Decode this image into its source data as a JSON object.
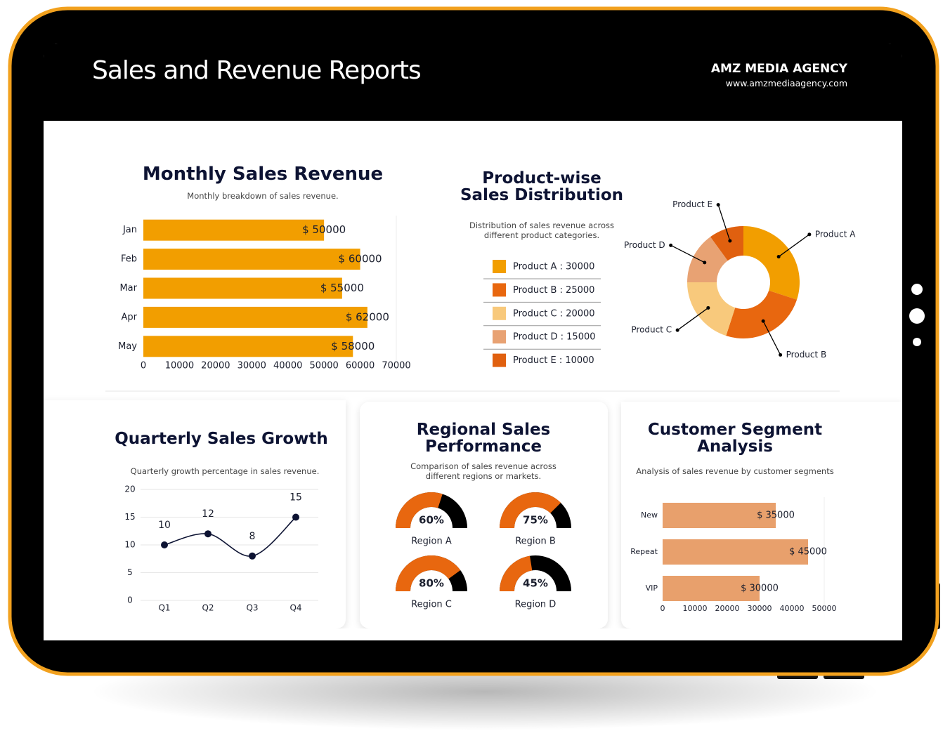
{
  "header": {
    "title": "Sales and Revenue Reports",
    "brand": "AMZ MEDIA AGENCY",
    "url": "www.amzmediaagency.com"
  },
  "chart_data": [
    {
      "type": "hbar",
      "title": "Monthly Sales Revenue",
      "subtitle": "Monthly breakdown of sales revenue.",
      "categories": [
        "Jan",
        "Feb",
        "Mar",
        "Apr",
        "May"
      ],
      "values": [
        50000,
        60000,
        55000,
        62000,
        58000
      ],
      "value_labels": [
        "$ 50000",
        "$ 60000",
        "$ 55000",
        "$ 62000",
        "$ 58000"
      ],
      "color": "#f29e00",
      "xlim": [
        0,
        70000
      ],
      "xticks": [
        0,
        10000,
        20000,
        30000,
        40000,
        50000,
        60000,
        70000
      ]
    },
    {
      "type": "donut",
      "title": "Product-wise Sales Distribution",
      "subtitle": "Distribution of sales revenue across different product categories.",
      "categories": [
        "Product A",
        "Product B",
        "Product C",
        "Product D",
        "Product E"
      ],
      "values": [
        30000,
        25000,
        20000,
        15000,
        10000
      ],
      "value_labels": [
        "Product A : 30000",
        "Product B : 25000",
        "Product C : 20000",
        "Product D : 15000",
        "Product E : 10000"
      ],
      "colors": [
        "#f29e00",
        "#e8670f",
        "#f8c97c",
        "#e8a273",
        "#e0600f"
      ]
    },
    {
      "type": "line",
      "title": "Quarterly Sales Growth",
      "subtitle": "Quarterly growth percentage in sales revenue.",
      "categories": [
        "Q1",
        "Q2",
        "Q3",
        "Q4"
      ],
      "values": [
        10,
        12,
        8,
        15
      ],
      "color": "#0d1333",
      "ylim": [
        0,
        20
      ],
      "yticks": [
        0,
        5,
        10,
        15,
        20
      ],
      "grid": true
    },
    {
      "type": "gauge",
      "title": "Regional Sales Performance",
      "subtitle": "Comparison of sales revenue across different regions or markets.",
      "categories": [
        "Region A",
        "Region B",
        "Region C",
        "Region D"
      ],
      "values": [
        60,
        75,
        80,
        45
      ],
      "value_labels": [
        "60%",
        "75%",
        "80%",
        "45%"
      ],
      "color": "#e8670f",
      "track_color": "#000000",
      "ylim": [
        0,
        100
      ]
    },
    {
      "type": "hbar",
      "title": "Customer Segment Analysis",
      "subtitle": "Analysis of sales revenue by customer segments",
      "categories": [
        "New",
        "Repeat",
        "VIP"
      ],
      "values": [
        35000,
        45000,
        30000
      ],
      "value_labels": [
        "$ 35000",
        "$ 45000",
        "$ 30000"
      ],
      "color": "#e8a06c",
      "xlim": [
        0,
        50000
      ],
      "xticks": [
        0,
        10000,
        20000,
        30000,
        40000,
        50000
      ]
    }
  ]
}
